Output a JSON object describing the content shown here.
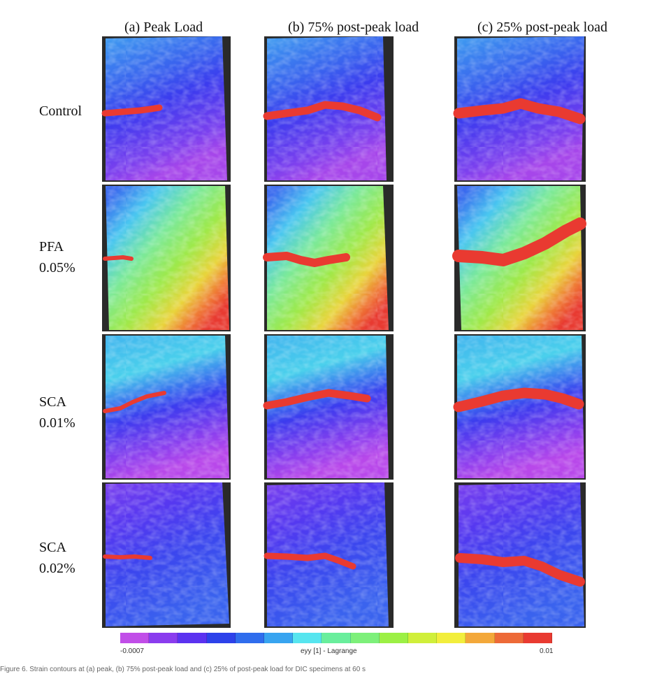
{
  "columns": [
    {
      "label": "(a)  Peak Load"
    },
    {
      "label": "(b) 75% post-peak load"
    },
    {
      "label": "(c) 25% post-peak load"
    }
  ],
  "rows": [
    {
      "line1": "Control",
      "line2": ""
    },
    {
      "line1": "PFA",
      "line2": "0.05%"
    },
    {
      "line1": "SCA",
      "line2": "0.01%"
    },
    {
      "line1": "SCA",
      "line2": "0.02%"
    }
  ],
  "colorbar": {
    "min_label": "-0.0007",
    "title": "eyy [1] - Lagrange",
    "max_label": "0.01",
    "colors": [
      "#c14ee8",
      "#8a3cee",
      "#5b32f0",
      "#2d42ea",
      "#2f6ded",
      "#38a4f0",
      "#57e5ef",
      "#69ee9c",
      "#7df07a",
      "#9cf045",
      "#d0ef3a",
      "#f2ee3c",
      "#f3a83a",
      "#ed6a38",
      "#e93a31"
    ]
  },
  "caption": "Figure 6. Strain contours at (a) peak, (b) 75% post-peak load and (c) 25% of post-peak load for DIC specimens at 60 s"
}
